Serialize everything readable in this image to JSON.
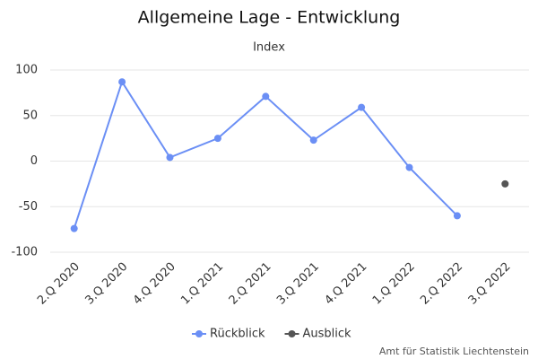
{
  "chart_data": {
    "type": "line",
    "title": "Allgemeine Lage - Entwicklung",
    "subtitle": "Index",
    "credits": "Amt für Statistik Liechtenstein",
    "categories": [
      "2.Q 2020",
      "3.Q 2020",
      "4.Q 2020",
      "1.Q 2021",
      "2.Q 2021",
      "3.Q 2021",
      "4.Q 2021",
      "1.Q 2022",
      "2.Q 2022",
      "3.Q 2022"
    ],
    "series": [
      {
        "name": "Rückblick",
        "color": "#6b8ff5",
        "values": [
          -74,
          87,
          4,
          25,
          71,
          23,
          59,
          -7,
          -60,
          null
        ]
      },
      {
        "name": "Ausblick",
        "color": "#555555",
        "values": [
          null,
          null,
          null,
          null,
          null,
          null,
          null,
          null,
          null,
          -25
        ]
      }
    ],
    "ylim": [
      -100,
      100
    ],
    "yticks": [
      -100,
      -50,
      0,
      50,
      100
    ],
    "grid": true
  }
}
